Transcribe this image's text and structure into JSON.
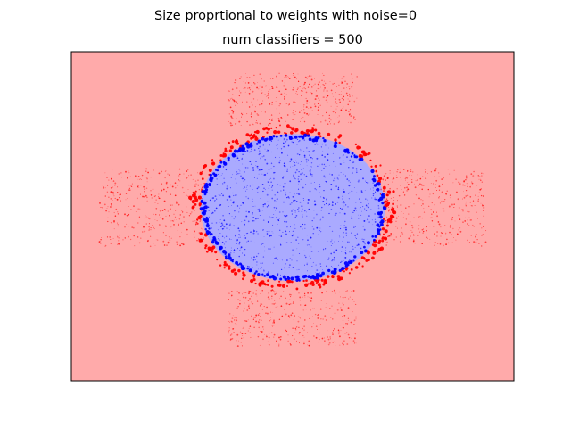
{
  "chart_data": {
    "type": "scatter",
    "title": "Size proprtional to weights with noise=0",
    "subtitle": "num classifiers = 500",
    "xlabel": "",
    "ylabel": "",
    "xticks": [],
    "yticks": [],
    "grid": false,
    "legend": "none",
    "background": {
      "type": "decision-regions",
      "outer_class": "red",
      "inner_class": "blue",
      "outer_color": "#ffaaaa",
      "inner_color": "#aaaaff",
      "inner_region": {
        "shape": "ellipse",
        "center": [
          0.0,
          0.0
        ],
        "radius_x": 1.0,
        "radius_y": 0.85
      }
    },
    "xlim": [
      -2.4,
      2.4
    ],
    "ylim": [
      -2.0,
      1.8
    ],
    "series": [
      {
        "class": "red",
        "color": "#ff0000",
        "regions": [
          {
            "shape": "ring",
            "center": [
              0.0,
              0.0
            ],
            "r_inner": 1.0,
            "r_outer": 1.12,
            "aspect": 0.85,
            "weight": "large"
          },
          {
            "shape": "box",
            "x": [
              -2.1,
              -0.95
            ],
            "y": [
              -0.45,
              0.45
            ],
            "weight": "small"
          },
          {
            "shape": "box",
            "x": [
              0.95,
              2.1
            ],
            "y": [
              -0.45,
              0.45
            ],
            "weight": "small"
          },
          {
            "shape": "box",
            "x": [
              -0.7,
              0.7
            ],
            "y": [
              0.95,
              1.55
            ],
            "weight": "small"
          },
          {
            "shape": "box",
            "x": [
              -0.7,
              0.7
            ],
            "y": [
              -1.6,
              -0.95
            ],
            "weight": "small"
          }
        ]
      },
      {
        "class": "blue",
        "color": "#0000ff",
        "regions": [
          {
            "shape": "ring",
            "center": [
              0.0,
              0.0
            ],
            "r_inner": 0.94,
            "r_outer": 1.0,
            "aspect": 0.85,
            "weight": "large"
          },
          {
            "shape": "disc",
            "center": [
              0.0,
              0.0
            ],
            "r": 0.94,
            "aspect": 0.85,
            "weight": "small"
          }
        ]
      }
    ]
  }
}
